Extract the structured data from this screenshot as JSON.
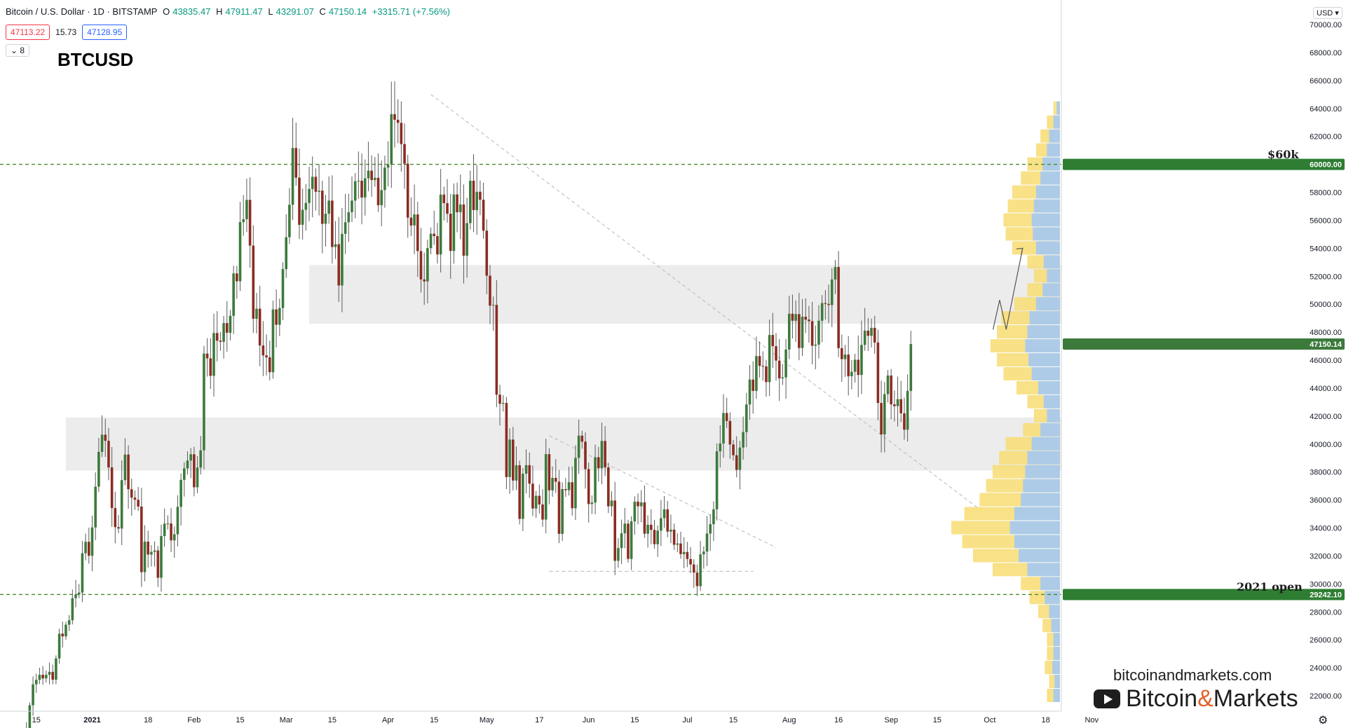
{
  "header": {
    "pair": "Bitcoin / U.S. Dollar · 1D · BITSTAMP",
    "o_label": "O",
    "o": "43835.47",
    "h_label": "H",
    "h": "47911.47",
    "l_label": "L",
    "l": "43291.07",
    "c_label": "C",
    "c": "47150.14",
    "change": "+3315.71 (+7.56%)"
  },
  "bid": "47113.22",
  "spread": "15.73",
  "ask": "47128.95",
  "indicators_toggle": "⌄ 8",
  "symbol_title": "BTCUSD",
  "currency": "USD ▾",
  "annotations": {
    "level_60k": "$60k",
    "open_2021": "2021 open"
  },
  "watermark": {
    "url": "bitcoinandmarkets.com",
    "brand_a": "Bitcoin",
    "brand_amp": "&",
    "brand_b": "Markets"
  },
  "colors": {
    "up": "#3c7a3c",
    "down": "#8b2c22",
    "level": "#4a8a2a",
    "zone": "#ececec",
    "vp_up": "#a9c9ec",
    "vp_down": "#f7de7a"
  },
  "chart_data": {
    "type": "candlestick",
    "symbol": "BTCUSD",
    "interval": "1D",
    "ylim": [
      21000,
      71000
    ],
    "y_ticks": [
      "22000.00",
      "24000.00",
      "26000.00",
      "28000.00",
      "30000.00",
      "32000.00",
      "34000.00",
      "36000.00",
      "38000.00",
      "40000.00",
      "42000.00",
      "44000.00",
      "46000.00",
      "48000.00",
      "50000.00",
      "52000.00",
      "54000.00",
      "56000.00",
      "58000.00",
      "62000.00",
      "64000.00",
      "66000.00",
      "68000.00",
      "70000.00"
    ],
    "x_ticks": [
      {
        "label": "15",
        "date": "2020-12-15"
      },
      {
        "label": "2021",
        "date": "2021-01-01"
      },
      {
        "label": "18",
        "date": "2021-01-18"
      },
      {
        "label": "Feb",
        "date": "2021-02-01"
      },
      {
        "label": "15",
        "date": "2021-02-15"
      },
      {
        "label": "Mar",
        "date": "2021-03-01"
      },
      {
        "label": "15",
        "date": "2021-03-15"
      },
      {
        "label": "Apr",
        "date": "2021-04-01"
      },
      {
        "label": "15",
        "date": "2021-04-15"
      },
      {
        "label": "May",
        "date": "2021-05-01"
      },
      {
        "label": "17",
        "date": "2021-05-17"
      },
      {
        "label": "Jun",
        "date": "2021-06-01"
      },
      {
        "label": "15",
        "date": "2021-06-15"
      },
      {
        "label": "Jul",
        "date": "2021-07-01"
      },
      {
        "label": "15",
        "date": "2021-07-15"
      },
      {
        "label": "Aug",
        "date": "2021-08-01"
      },
      {
        "label": "16",
        "date": "2021-08-16"
      },
      {
        "label": "Sep",
        "date": "2021-09-01"
      },
      {
        "label": "15",
        "date": "2021-09-15"
      },
      {
        "label": "Oct",
        "date": "2021-10-01"
      },
      {
        "label": "18",
        "date": "2021-10-18"
      },
      {
        "label": "Nov",
        "date": "2021-11-01"
      }
    ],
    "price_tags": [
      {
        "text": "60000.00",
        "value": 60000,
        "color": "#2e7d32"
      },
      {
        "text": "47150.14",
        "value": 47150.14,
        "color": "#3c7a3c"
      },
      {
        "text": "29242.10",
        "value": 29242.1,
        "color": "#2e7d32"
      }
    ],
    "levels": [
      {
        "value": 60000,
        "style": "dashed"
      },
      {
        "value": 29242.1,
        "style": "dashed"
      }
    ],
    "zones": [
      {
        "from": 48600,
        "to": 52800,
        "start": "2021-03-08",
        "end": "2021-10-24"
      },
      {
        "from": 38100,
        "to": 41900,
        "start": "2020-12-24",
        "end": "2021-10-24"
      }
    ],
    "trendlines": [
      {
        "from": [
          "2021-04-14",
          65000
        ],
        "to": [
          "2021-09-27",
          35500
        ],
        "style": "dashed"
      },
      {
        "from": [
          "2021-05-20",
          40600
        ],
        "to": [
          "2021-07-28",
          32600
        ],
        "style": "dashed"
      },
      {
        "from": [
          "2021-05-20",
          30900
        ],
        "to": [
          "2021-07-21",
          30900
        ],
        "style": "dashed"
      }
    ],
    "projection": [
      [
        "2021-10-02",
        48200
      ],
      [
        "2021-10-04",
        50300
      ],
      [
        "2021-10-06",
        48200
      ],
      [
        "2021-10-11",
        54000
      ]
    ],
    "closes": [
      19280,
      19420,
      21320,
      22820,
      23140,
      23500,
      23240,
      23500,
      23710,
      23150,
      24670,
      26440,
      26250,
      27080,
      27400,
      28980,
      29240,
      29380,
      32190,
      33010,
      32010,
      34040,
      36950,
      39440,
      40670,
      40230,
      38330,
      35420,
      34060,
      33960,
      37420,
      39250,
      36770,
      36170,
      36020,
      35530,
      30840,
      33020,
      32100,
      32290,
      32390,
      30440,
      33420,
      34310,
      34320,
      33110,
      33550,
      35510,
      37440,
      38260,
      38820,
      39270,
      36910,
      38320,
      39550,
      46470,
      46130,
      44880,
      47940,
      47390,
      47310,
      48650,
      47960,
      49170,
      52200,
      51640,
      55870,
      56080,
      57460,
      54190,
      48960,
      49680,
      47050,
      46340,
      46200,
      45140,
      49630,
      48530,
      49730,
      52510,
      54790,
      57110,
      61170,
      59050,
      55680,
      56750,
      57240,
      58240,
      59110,
      58040,
      58120,
      55750,
      56470,
      57410,
      54090,
      54290,
      51340,
      55030,
      55860,
      56580,
      57410,
      58790,
      58830,
      57630,
      59000,
      59550,
      58880,
      59040,
      57080,
      58160,
      59770,
      60000,
      63590,
      63190,
      62970,
      61450,
      60050,
      56190,
      55630,
      56420,
      53800,
      51770,
      51630,
      54010,
      55040,
      54870,
      53560,
      57840,
      57230,
      56470,
      53810,
      57850,
      56580,
      57130,
      53470,
      55800,
      58830,
      56730,
      58040,
      57470,
      55260,
      52040,
      49900,
      49950,
      43530,
      42880,
      42940,
      37640,
      40320,
      37390,
      38480,
      34650,
      37880,
      38490,
      37170,
      35390,
      36300,
      35680,
      34600,
      39280,
      36690,
      37580,
      37310,
      33580,
      36780,
      36700,
      37270,
      35410,
      39010,
      40600,
      40170,
      38210,
      35710,
      35820,
      39060,
      38270,
      40220,
      38330,
      35550,
      35960,
      31650,
      32560,
      33620,
      34310,
      31790,
      34470,
      35880,
      35550,
      35830,
      33590,
      34230,
      33860,
      32840,
      33810,
      34700,
      35330,
      33740,
      33880,
      32800,
      32890,
      32130,
      32280,
      31780,
      31390,
      30810,
      29840,
      32110,
      32310,
      33600,
      34270,
      35330,
      39480,
      40040,
      42220,
      41650,
      39970,
      39200,
      38150,
      39750,
      40860,
      42830,
      44610,
      43800,
      46290,
      45590,
      45550,
      44430,
      47800,
      47000,
      45970,
      44700,
      44770,
      46760,
      49320,
      48820,
      49290,
      46870,
      49100,
      48900,
      48790,
      47030,
      47110,
      48820,
      50080,
      50020,
      49940,
      51770,
      52660,
      46860,
      46070,
      46400,
      44850,
      45170,
      46030,
      44940,
      47090,
      48110,
      47740,
      48310,
      47260,
      42940,
      40690,
      43570,
      44900,
      42840,
      42710,
      43210,
      42200,
      41030,
      43800,
      47150
    ],
    "volume_profile": [
      {
        "price": 22000,
        "total": 0.12,
        "buy": 0.06
      },
      {
        "price": 23000,
        "total": 0.1,
        "buy": 0.05
      },
      {
        "price": 24000,
        "total": 0.14,
        "buy": 0.07
      },
      {
        "price": 25000,
        "total": 0.12,
        "buy": 0.06
      },
      {
        "price": 26000,
        "total": 0.12,
        "buy": 0.06
      },
      {
        "price": 27000,
        "total": 0.16,
        "buy": 0.08
      },
      {
        "price": 28000,
        "total": 0.2,
        "buy": 0.1
      },
      {
        "price": 29000,
        "total": 0.28,
        "buy": 0.14
      },
      {
        "price": 30000,
        "total": 0.36,
        "buy": 0.18
      },
      {
        "price": 31000,
        "total": 0.62,
        "buy": 0.3
      },
      {
        "price": 32000,
        "total": 0.8,
        "buy": 0.38
      },
      {
        "price": 33000,
        "total": 0.9,
        "buy": 0.42
      },
      {
        "price": 34000,
        "total": 1.0,
        "buy": 0.46
      },
      {
        "price": 35000,
        "total": 0.88,
        "buy": 0.42
      },
      {
        "price": 36000,
        "total": 0.74,
        "buy": 0.36
      },
      {
        "price": 37000,
        "total": 0.68,
        "buy": 0.34
      },
      {
        "price": 38000,
        "total": 0.62,
        "buy": 0.32
      },
      {
        "price": 39000,
        "total": 0.56,
        "buy": 0.3
      },
      {
        "price": 40000,
        "total": 0.5,
        "buy": 0.26
      },
      {
        "price": 41000,
        "total": 0.34,
        "buy": 0.18
      },
      {
        "price": 42000,
        "total": 0.24,
        "buy": 0.12
      },
      {
        "price": 43000,
        "total": 0.3,
        "buy": 0.15
      },
      {
        "price": 44000,
        "total": 0.4,
        "buy": 0.2
      },
      {
        "price": 45000,
        "total": 0.52,
        "buy": 0.26
      },
      {
        "price": 46000,
        "total": 0.58,
        "buy": 0.29
      },
      {
        "price": 47000,
        "total": 0.64,
        "buy": 0.32
      },
      {
        "price": 48000,
        "total": 0.58,
        "buy": 0.3
      },
      {
        "price": 49000,
        "total": 0.54,
        "buy": 0.28
      },
      {
        "price": 50000,
        "total": 0.42,
        "buy": 0.22
      },
      {
        "price": 51000,
        "total": 0.3,
        "buy": 0.16
      },
      {
        "price": 52000,
        "total": 0.24,
        "buy": 0.12
      },
      {
        "price": 53000,
        "total": 0.3,
        "buy": 0.15
      },
      {
        "price": 54000,
        "total": 0.44,
        "buy": 0.22
      },
      {
        "price": 55000,
        "total": 0.5,
        "buy": 0.25
      },
      {
        "price": 56000,
        "total": 0.52,
        "buy": 0.26
      },
      {
        "price": 57000,
        "total": 0.48,
        "buy": 0.24
      },
      {
        "price": 58000,
        "total": 0.44,
        "buy": 0.22
      },
      {
        "price": 59000,
        "total": 0.36,
        "buy": 0.18
      },
      {
        "price": 60000,
        "total": 0.3,
        "buy": 0.16
      },
      {
        "price": 61000,
        "total": 0.22,
        "buy": 0.12
      },
      {
        "price": 62000,
        "total": 0.18,
        "buy": 0.1
      },
      {
        "price": 63000,
        "total": 0.12,
        "buy": 0.06
      },
      {
        "price": 64000,
        "total": 0.06,
        "buy": 0.03
      }
    ]
  }
}
